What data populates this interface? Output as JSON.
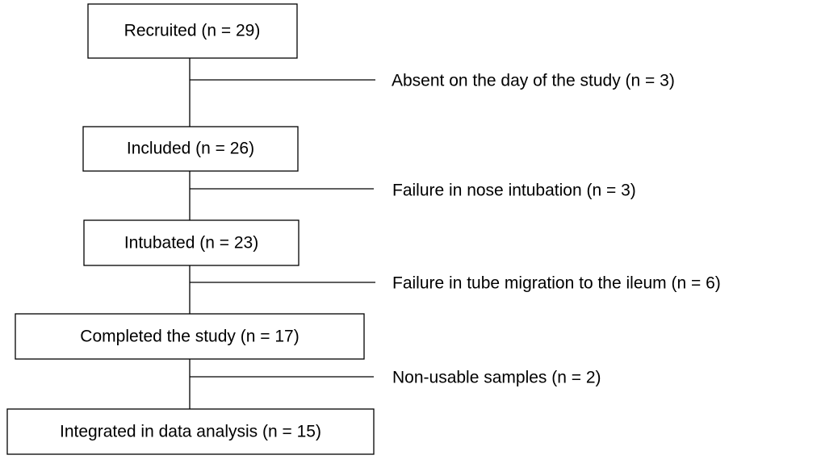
{
  "nodes": [
    {
      "label": "Recruited (n = 29)"
    },
    {
      "label": "Included (n = 26)"
    },
    {
      "label": "Intubated (n = 23)"
    },
    {
      "label": "Completed the study (n = 17)"
    },
    {
      "label": "Integrated in data analysis (n = 15)"
    }
  ],
  "exclusions": [
    {
      "label": "Absent on the day of the study (n = 3)"
    },
    {
      "label": "Failure in nose intubation (n = 3)"
    },
    {
      "label": "Failure in tube migration to the ileum (n = 6)"
    },
    {
      "label": "Non-usable samples (n = 2)"
    }
  ]
}
